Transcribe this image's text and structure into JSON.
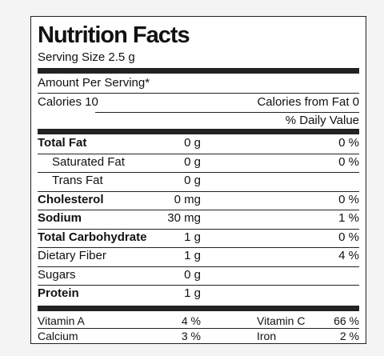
{
  "title": "Nutrition Facts",
  "serving_size": "Serving Size 2.5 g",
  "amount_per_serving": "Amount Per Serving*",
  "calories": "Calories  10",
  "calories_from_fat": "Calories from Fat  0",
  "daily_value_header": "% Daily Value",
  "rows": [
    {
      "name": "Total Fat",
      "amount": "0 g",
      "dv": "0 %",
      "bold": true
    },
    {
      "name": "Saturated Fat",
      "amount": "0 g",
      "dv": "0 %",
      "indent": true
    },
    {
      "name": "Trans Fat",
      "amount": "0 g",
      "indent": true
    },
    {
      "name": "Cholesterol",
      "amount": "0 mg",
      "dv": "0 %",
      "bold": true
    },
    {
      "name": "Sodium",
      "amount": "30 mg",
      "dv": "1 %",
      "bold": true
    },
    {
      "name": "Total Carbohydrate",
      "amount": "1 g",
      "dv": "0 %",
      "bold": true
    },
    {
      "name": "Dietary Fiber",
      "amount": "1 g",
      "dv": "4 %",
      "indent": false
    },
    {
      "name": "Sugars",
      "amount": "0 g"
    },
    {
      "name": "Protein",
      "amount": "1 g",
      "bold": true
    }
  ],
  "vitamins": [
    [
      {
        "name": "Vitamin A",
        "dv": "4 %"
      },
      {
        "name": "Vitamin C",
        "dv": "66 %"
      }
    ],
    [
      {
        "name": "Calcium",
        "dv": "3 %"
      },
      {
        "name": "Iron",
        "dv": "2 %"
      }
    ]
  ]
}
